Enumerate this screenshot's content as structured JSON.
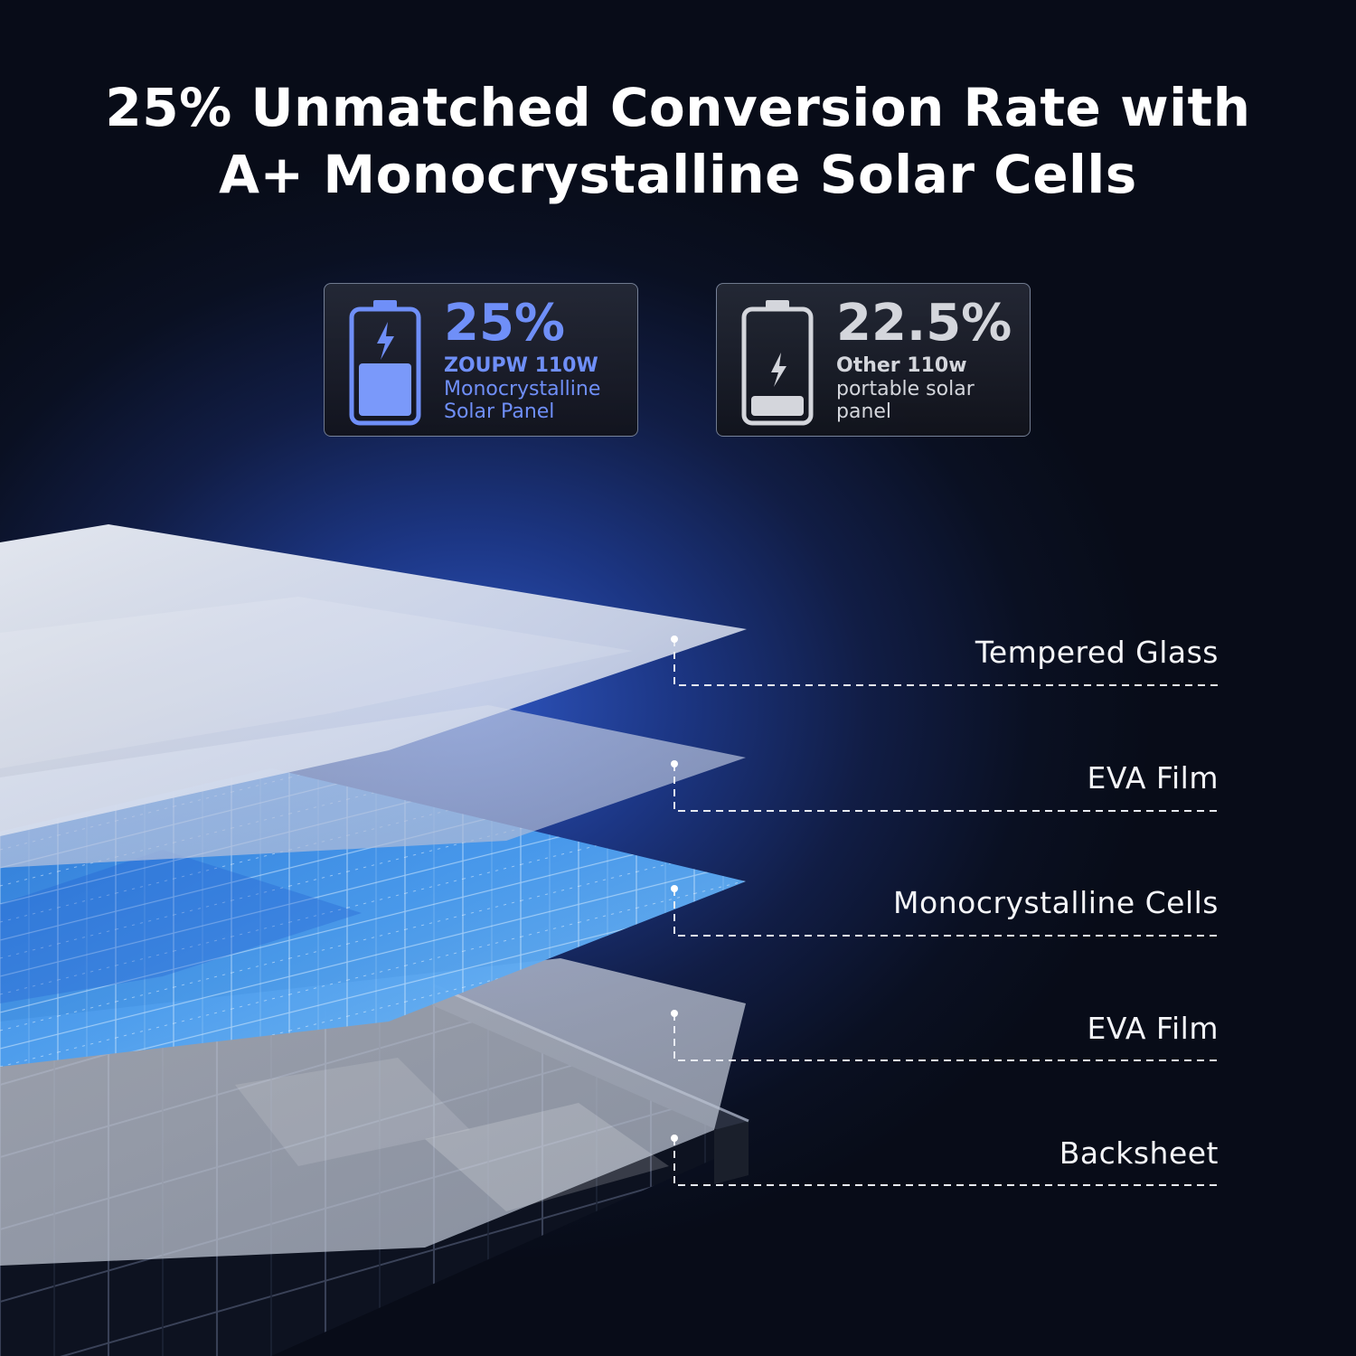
{
  "headline": {
    "line1": "25% Unmatched Conversion Rate with",
    "line2": "A+ Monocrystalline Solar Cells"
  },
  "comparison": {
    "zoupw": {
      "percent": "25%",
      "brand": "ZOUPW 110W",
      "description": "Monocrystalline Solar Panel",
      "charge_level": 0.52,
      "accent_color": "#6f8ff8",
      "icon": "battery-charging-icon"
    },
    "other": {
      "percent": "22.5%",
      "brand": "Other 110w",
      "description": "portable solar panel",
      "charge_level": 0.2,
      "accent_color": "#d4d6dc",
      "icon": "battery-low-icon"
    }
  },
  "layers": [
    {
      "label": "Tempered Glass"
    },
    {
      "label": "EVA Film"
    },
    {
      "label": "Monocrystalline Cells"
    },
    {
      "label": "EVA Film"
    },
    {
      "label": "Backsheet"
    }
  ]
}
